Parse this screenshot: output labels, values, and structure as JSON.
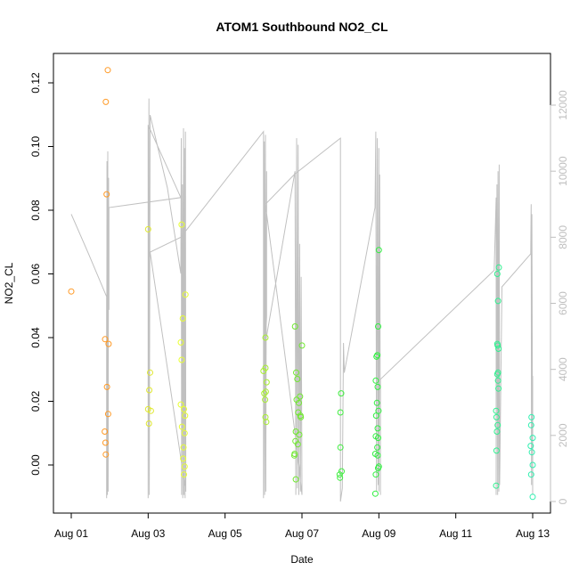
{
  "chart_data": {
    "type": "scatter",
    "title": "ATOM1 Southbound NO2_CL",
    "xlabel": "Date",
    "ylabel": "NO2_CL",
    "xlim": [
      0,
      12.25
    ],
    "ylim": [
      -0.015,
      0.13
    ],
    "y2lim": [
      -500,
      12800
    ],
    "x_ticks": [
      {
        "value": 0,
        "label": "Aug 01"
      },
      {
        "value": 2,
        "label": "Aug 03"
      },
      {
        "value": 4,
        "label": "Aug 05"
      },
      {
        "value": 6,
        "label": "Aug 07"
      },
      {
        "value": 8,
        "label": "Aug 09"
      },
      {
        "value": 10,
        "label": "Aug 11"
      },
      {
        "value": 12,
        "label": "Aug 13"
      }
    ],
    "y_ticks": [
      {
        "value": 0.0,
        "label": "0.00"
      },
      {
        "value": 0.02,
        "label": "0.02"
      },
      {
        "value": 0.04,
        "label": "0.04"
      },
      {
        "value": 0.06,
        "label": "0.06"
      },
      {
        "value": 0.08,
        "label": "0.08"
      },
      {
        "value": 0.1,
        "label": "0.10"
      },
      {
        "value": 0.12,
        "label": "0.12"
      }
    ],
    "y2_ticks": [
      {
        "value": 0,
        "label": "0"
      },
      {
        "value": 2000,
        "label": "2000"
      },
      {
        "value": 4000,
        "label": "4000"
      },
      {
        "value": 6000,
        "label": "6000"
      },
      {
        "value": 8000,
        "label": "8000"
      },
      {
        "value": 10000,
        "label": "10000"
      },
      {
        "value": 12000,
        "label": "12000"
      }
    ],
    "grid": false,
    "legend": "none",
    "points": [
      {
        "x": 0.0,
        "y": 0.0545,
        "color": "#FF9A26"
      },
      {
        "x": 0.95,
        "y": 0.124,
        "color": "#FF9A26"
      },
      {
        "x": 0.9,
        "y": 0.114,
        "color": "#FF9A26"
      },
      {
        "x": 0.92,
        "y": 0.085,
        "color": "#FF9A26"
      },
      {
        "x": 0.88,
        "y": 0.0395,
        "color": "#FF9A26"
      },
      {
        "x": 0.97,
        "y": 0.038,
        "color": "#FF9A26"
      },
      {
        "x": 0.93,
        "y": 0.0245,
        "color": "#FF9A26"
      },
      {
        "x": 0.96,
        "y": 0.016,
        "color": "#FF9A26"
      },
      {
        "x": 0.87,
        "y": 0.0105,
        "color": "#FF9A26"
      },
      {
        "x": 0.89,
        "y": 0.007,
        "color": "#FF9A26"
      },
      {
        "x": 0.9,
        "y": 0.0033,
        "color": "#FF9A26"
      },
      {
        "x": 2.0,
        "y": 0.074,
        "color": "#E0E830"
      },
      {
        "x": 2.05,
        "y": 0.029,
        "color": "#E0E830"
      },
      {
        "x": 2.03,
        "y": 0.0235,
        "color": "#E0E830"
      },
      {
        "x": 2.0,
        "y": 0.0175,
        "color": "#E0E830"
      },
      {
        "x": 2.07,
        "y": 0.017,
        "color": "#E0E830"
      },
      {
        "x": 2.02,
        "y": 0.013,
        "color": "#E0E830"
      },
      {
        "x": 2.87,
        "y": 0.0755,
        "color": "#E8FF30"
      },
      {
        "x": 2.97,
        "y": 0.0535,
        "color": "#E8FF30"
      },
      {
        "x": 2.9,
        "y": 0.046,
        "color": "#E8FF30"
      },
      {
        "x": 2.85,
        "y": 0.0385,
        "color": "#E8FF30"
      },
      {
        "x": 2.87,
        "y": 0.033,
        "color": "#E8FF30"
      },
      {
        "x": 2.85,
        "y": 0.019,
        "color": "#E8FF30"
      },
      {
        "x": 2.93,
        "y": 0.0175,
        "color": "#E8FF30"
      },
      {
        "x": 2.96,
        "y": 0.0155,
        "color": "#E8FF30"
      },
      {
        "x": 2.88,
        "y": 0.012,
        "color": "#E8FF30"
      },
      {
        "x": 2.95,
        "y": 0.01,
        "color": "#E8FF30"
      },
      {
        "x": 2.92,
        "y": 0.0055,
        "color": "#E8FF30"
      },
      {
        "x": 2.91,
        "y": 0.002,
        "color": "#E8FF30"
      },
      {
        "x": 2.95,
        "y": -0.0005,
        "color": "#E8FF30"
      },
      {
        "x": 2.93,
        "y": -0.003,
        "color": "#E8FF30"
      },
      {
        "x": 5.05,
        "y": 0.04,
        "color": "#A8F030"
      },
      {
        "x": 5.05,
        "y": 0.0305,
        "color": "#A8F030"
      },
      {
        "x": 5.0,
        "y": 0.0295,
        "color": "#A8F030"
      },
      {
        "x": 5.08,
        "y": 0.026,
        "color": "#A8F030"
      },
      {
        "x": 5.06,
        "y": 0.023,
        "color": "#A8F030"
      },
      {
        "x": 5.02,
        "y": 0.0225,
        "color": "#A8F030"
      },
      {
        "x": 5.04,
        "y": 0.0205,
        "color": "#A8F030"
      },
      {
        "x": 5.05,
        "y": 0.015,
        "color": "#A8F030"
      },
      {
        "x": 5.07,
        "y": 0.0135,
        "color": "#A8F030"
      },
      {
        "x": 5.82,
        "y": 0.0435,
        "color": "#70E830"
      },
      {
        "x": 6.0,
        "y": 0.0375,
        "color": "#70E830"
      },
      {
        "x": 5.85,
        "y": 0.029,
        "color": "#70E830"
      },
      {
        "x": 5.88,
        "y": 0.027,
        "color": "#70E830"
      },
      {
        "x": 5.95,
        "y": 0.0215,
        "color": "#70E830"
      },
      {
        "x": 5.86,
        "y": 0.0205,
        "color": "#70E830"
      },
      {
        "x": 5.92,
        "y": 0.0195,
        "color": "#70E830"
      },
      {
        "x": 5.9,
        "y": 0.0165,
        "color": "#70E830"
      },
      {
        "x": 5.96,
        "y": 0.0155,
        "color": "#70E830"
      },
      {
        "x": 5.97,
        "y": 0.015,
        "color": "#70E830"
      },
      {
        "x": 5.84,
        "y": 0.0105,
        "color": "#70E830"
      },
      {
        "x": 5.93,
        "y": 0.0095,
        "color": "#70E830"
      },
      {
        "x": 5.83,
        "y": 0.0075,
        "color": "#70E830"
      },
      {
        "x": 5.89,
        "y": 0.0065,
        "color": "#70E830"
      },
      {
        "x": 5.81,
        "y": 0.0035,
        "color": "#70E830"
      },
      {
        "x": 5.8,
        "y": 0.003,
        "color": "#70E830"
      },
      {
        "x": 5.84,
        "y": -0.0045,
        "color": "#70E830"
      },
      {
        "x": 7.02,
        "y": 0.0225,
        "color": "#40EE40"
      },
      {
        "x": 7.0,
        "y": 0.0165,
        "color": "#40EE40"
      },
      {
        "x": 7.0,
        "y": 0.0055,
        "color": "#40EE40"
      },
      {
        "x": 7.03,
        "y": -0.002,
        "color": "#40EE40"
      },
      {
        "x": 6.98,
        "y": -0.003,
        "color": "#40EE40"
      },
      {
        "x": 6.99,
        "y": -0.004,
        "color": "#40EE40"
      },
      {
        "x": 8.0,
        "y": 0.0675,
        "color": "#30F040"
      },
      {
        "x": 7.98,
        "y": 0.0435,
        "color": "#30F040"
      },
      {
        "x": 7.96,
        "y": 0.0345,
        "color": "#30F040"
      },
      {
        "x": 7.94,
        "y": 0.034,
        "color": "#30F040"
      },
      {
        "x": 7.92,
        "y": 0.0265,
        "color": "#30F040"
      },
      {
        "x": 7.97,
        "y": 0.0245,
        "color": "#30F040"
      },
      {
        "x": 7.95,
        "y": 0.0195,
        "color": "#30F040"
      },
      {
        "x": 7.99,
        "y": 0.017,
        "color": "#30F040"
      },
      {
        "x": 7.93,
        "y": 0.0155,
        "color": "#30F040"
      },
      {
        "x": 7.97,
        "y": 0.0115,
        "color": "#30F040"
      },
      {
        "x": 7.92,
        "y": 0.009,
        "color": "#30F040"
      },
      {
        "x": 7.98,
        "y": 0.0085,
        "color": "#30F040"
      },
      {
        "x": 7.96,
        "y": 0.0055,
        "color": "#30F040"
      },
      {
        "x": 7.91,
        "y": 0.0035,
        "color": "#30F040"
      },
      {
        "x": 7.97,
        "y": 0.003,
        "color": "#30F040"
      },
      {
        "x": 8.0,
        "y": -0.0005,
        "color": "#30F040"
      },
      {
        "x": 7.98,
        "y": -0.001,
        "color": "#30F040"
      },
      {
        "x": 7.92,
        "y": -0.003,
        "color": "#30F040"
      },
      {
        "x": 7.91,
        "y": -0.009,
        "color": "#30F040"
      },
      {
        "x": 11.12,
        "y": 0.062,
        "color": "#30F090"
      },
      {
        "x": 11.08,
        "y": 0.06,
        "color": "#30F090"
      },
      {
        "x": 11.1,
        "y": 0.0515,
        "color": "#30F090"
      },
      {
        "x": 11.08,
        "y": 0.038,
        "color": "#30F090"
      },
      {
        "x": 11.09,
        "y": 0.0375,
        "color": "#30F090"
      },
      {
        "x": 11.11,
        "y": 0.0365,
        "color": "#30F090"
      },
      {
        "x": 11.1,
        "y": 0.029,
        "color": "#30F090"
      },
      {
        "x": 11.08,
        "y": 0.0285,
        "color": "#30F090"
      },
      {
        "x": 11.1,
        "y": 0.0265,
        "color": "#30F090"
      },
      {
        "x": 11.11,
        "y": 0.024,
        "color": "#30F090"
      },
      {
        "x": 11.05,
        "y": 0.017,
        "color": "#30F090"
      },
      {
        "x": 11.06,
        "y": 0.015,
        "color": "#30F090"
      },
      {
        "x": 11.09,
        "y": 0.0125,
        "color": "#30F090"
      },
      {
        "x": 11.07,
        "y": 0.0105,
        "color": "#30F090"
      },
      {
        "x": 11.06,
        "y": 0.0045,
        "color": "#30F090"
      },
      {
        "x": 11.05,
        "y": -0.0065,
        "color": "#30F090"
      },
      {
        "x": 11.97,
        "y": 0.015,
        "color": "#30F0B0"
      },
      {
        "x": 11.96,
        "y": 0.0125,
        "color": "#30F0B0"
      },
      {
        "x": 12.0,
        "y": 0.0085,
        "color": "#30F0B0"
      },
      {
        "x": 11.95,
        "y": 0.006,
        "color": "#30F0B0"
      },
      {
        "x": 11.98,
        "y": 0.004,
        "color": "#30F0B0"
      },
      {
        "x": 12.0,
        "y": 0.0,
        "color": "#30F0B0"
      },
      {
        "x": 11.96,
        "y": -0.003,
        "color": "#30F0B0"
      },
      {
        "x": 12.0,
        "y": -0.01,
        "color": "#30F0B0"
      }
    ],
    "line_series": {
      "axis": "right",
      "color": "#c0c0c0",
      "points": [
        [
          0.0,
          8700
        ],
        [
          0.45,
          7500
        ],
        [
          0.92,
          6200
        ],
        [
          0.92,
          100
        ],
        [
          0.93,
          10300
        ],
        [
          0.94,
          200
        ],
        [
          0.95,
          10600
        ],
        [
          0.96,
          300
        ],
        [
          0.97,
          9800
        ],
        [
          0.98,
          5800
        ],
        [
          0.98,
          8900
        ],
        [
          2.85,
          9200
        ],
        [
          2.0,
          11400
        ],
        [
          2.0,
          100
        ],
        [
          2.02,
          12200
        ],
        [
          2.03,
          200
        ],
        [
          2.05,
          11700
        ],
        [
          2.5,
          9500
        ],
        [
          2.85,
          6900
        ],
        [
          2.86,
          11000
        ],
        [
          2.87,
          200
        ],
        [
          2.89,
          9600
        ],
        [
          2.9,
          100
        ],
        [
          2.92,
          11300
        ],
        [
          2.93,
          200
        ],
        [
          2.95,
          10700
        ],
        [
          2.96,
          100
        ],
        [
          2.97,
          11200
        ],
        [
          2.98,
          300
        ],
        [
          2.05,
          7550
        ],
        [
          2.85,
          8000
        ],
        [
          5.0,
          11200
        ],
        [
          5.0,
          100
        ],
        [
          5.02,
          10900
        ],
        [
          5.03,
          200
        ],
        [
          5.05,
          11100
        ],
        [
          5.06,
          300
        ],
        [
          5.08,
          10000
        ],
        [
          5.08,
          5600
        ],
        [
          5.05,
          4800
        ],
        [
          5.82,
          10000
        ],
        [
          5.84,
          200
        ],
        [
          5.86,
          11000
        ],
        [
          5.88,
          400
        ],
        [
          5.9,
          10800
        ],
        [
          5.92,
          200
        ],
        [
          5.94,
          7800
        ],
        [
          5.96,
          300
        ],
        [
          5.98,
          6800
        ],
        [
          6.0,
          200
        ],
        [
          5.85,
          1800
        ],
        [
          5.95,
          900
        ],
        [
          5.05,
          9000
        ],
        [
          5.8,
          9900
        ],
        [
          7.0,
          11000
        ],
        [
          7.0,
          0
        ],
        [
          7.05,
          400
        ],
        [
          7.08,
          4800
        ],
        [
          7.1,
          3900
        ],
        [
          7.9,
          8900
        ],
        [
          7.92,
          11200
        ],
        [
          7.94,
          300
        ],
        [
          7.96,
          11000
        ],
        [
          7.98,
          500
        ],
        [
          8.0,
          10700
        ],
        [
          8.0,
          300
        ],
        [
          8.02,
          9900
        ],
        [
          8.04,
          200
        ],
        [
          8.04,
          3700
        ],
        [
          11.0,
          7000
        ],
        [
          11.05,
          9200
        ],
        [
          11.05,
          200
        ],
        [
          11.07,
          9600
        ],
        [
          11.09,
          200
        ],
        [
          11.1,
          10000
        ],
        [
          11.12,
          300
        ],
        [
          11.13,
          10200
        ],
        [
          11.14,
          500
        ],
        [
          11.2,
          6500
        ],
        [
          11.95,
          7500
        ],
        [
          11.96,
          9000
        ],
        [
          11.97,
          500
        ],
        [
          11.98,
          8700
        ],
        [
          12.0,
          200
        ],
        [
          12.0,
          3800
        ]
      ]
    }
  }
}
